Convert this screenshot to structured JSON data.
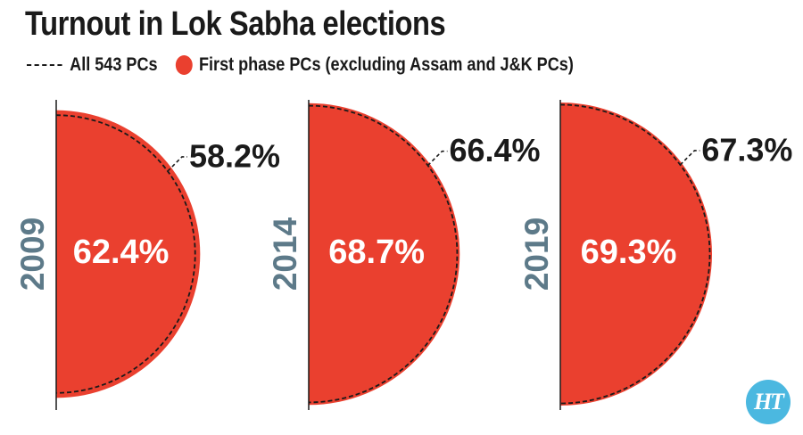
{
  "title": "Turnout in Lok Sabha elections",
  "legend": {
    "all_pcs_label": "All 543 PCs",
    "first_phase_label": "First phase PCs (excluding Assam and J&K PCs)"
  },
  "colors": {
    "first_phase": "#ea402f",
    "year_label": "#5d7a89",
    "text": "#1a1a1a",
    "logo": "#4bb8e0"
  },
  "chart_data": {
    "type": "proportional half-circle",
    "unit": "%",
    "years": [
      "2009",
      "2014",
      "2019"
    ],
    "series": [
      {
        "name": "All 543 PCs",
        "style": "dashed outline",
        "values": [
          58.2,
          66.4,
          67.3
        ],
        "labels": [
          "58.2%",
          "66.4%",
          "67.3%"
        ]
      },
      {
        "name": "First phase PCs (excluding Assam and J&K PCs)",
        "style": "red fill",
        "values": [
          62.4,
          68.7,
          69.3
        ],
        "labels": [
          "62.4%",
          "68.7%",
          "69.3%"
        ]
      }
    ]
  },
  "logo_text": "HT"
}
